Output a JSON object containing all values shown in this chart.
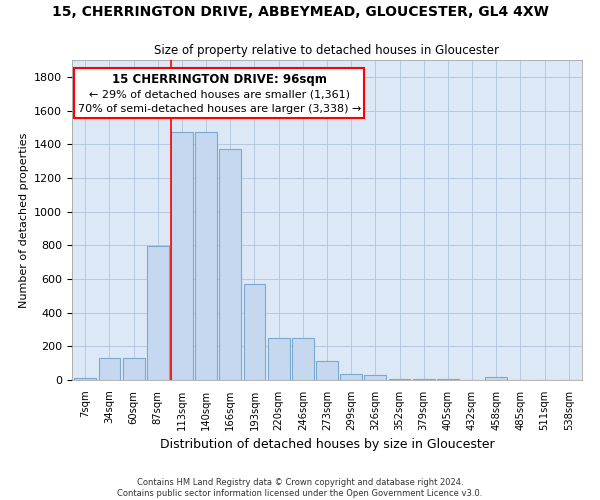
{
  "title": "15, CHERRINGTON DRIVE, ABBEYMEAD, GLOUCESTER, GL4 4XW",
  "subtitle": "Size of property relative to detached houses in Gloucester",
  "xlabel": "Distribution of detached houses by size in Gloucester",
  "ylabel": "Number of detached properties",
  "bar_color": "#c5d8f0",
  "bar_edge_color": "#7aaad0",
  "categories": [
    "7sqm",
    "34sqm",
    "60sqm",
    "87sqm",
    "113sqm",
    "140sqm",
    "166sqm",
    "193sqm",
    "220sqm",
    "246sqm",
    "273sqm",
    "299sqm",
    "326sqm",
    "352sqm",
    "379sqm",
    "405sqm",
    "432sqm",
    "458sqm",
    "485sqm",
    "511sqm",
    "538sqm"
  ],
  "values": [
    10,
    130,
    130,
    795,
    1475,
    1475,
    1370,
    570,
    250,
    250,
    110,
    35,
    30,
    5,
    5,
    5,
    0,
    20,
    0,
    0,
    0
  ],
  "ylim": [
    0,
    1900
  ],
  "yticks": [
    0,
    200,
    400,
    600,
    800,
    1000,
    1200,
    1400,
    1600,
    1800
  ],
  "property_line_index": 4,
  "annotation_title": "15 CHERRINGTON DRIVE: 96sqm",
  "annotation_line1": "← 29% of detached houses are smaller (1,361)",
  "annotation_line2": "70% of semi-detached houses are larger (3,338) →",
  "footer_line1": "Contains HM Land Registry data © Crown copyright and database right 2024.",
  "footer_line2": "Contains public sector information licensed under the Open Government Licence v3.0.",
  "background_color": "#ffffff",
  "axes_bg_color": "#dce8f5",
  "grid_color": "#b0c4de"
}
